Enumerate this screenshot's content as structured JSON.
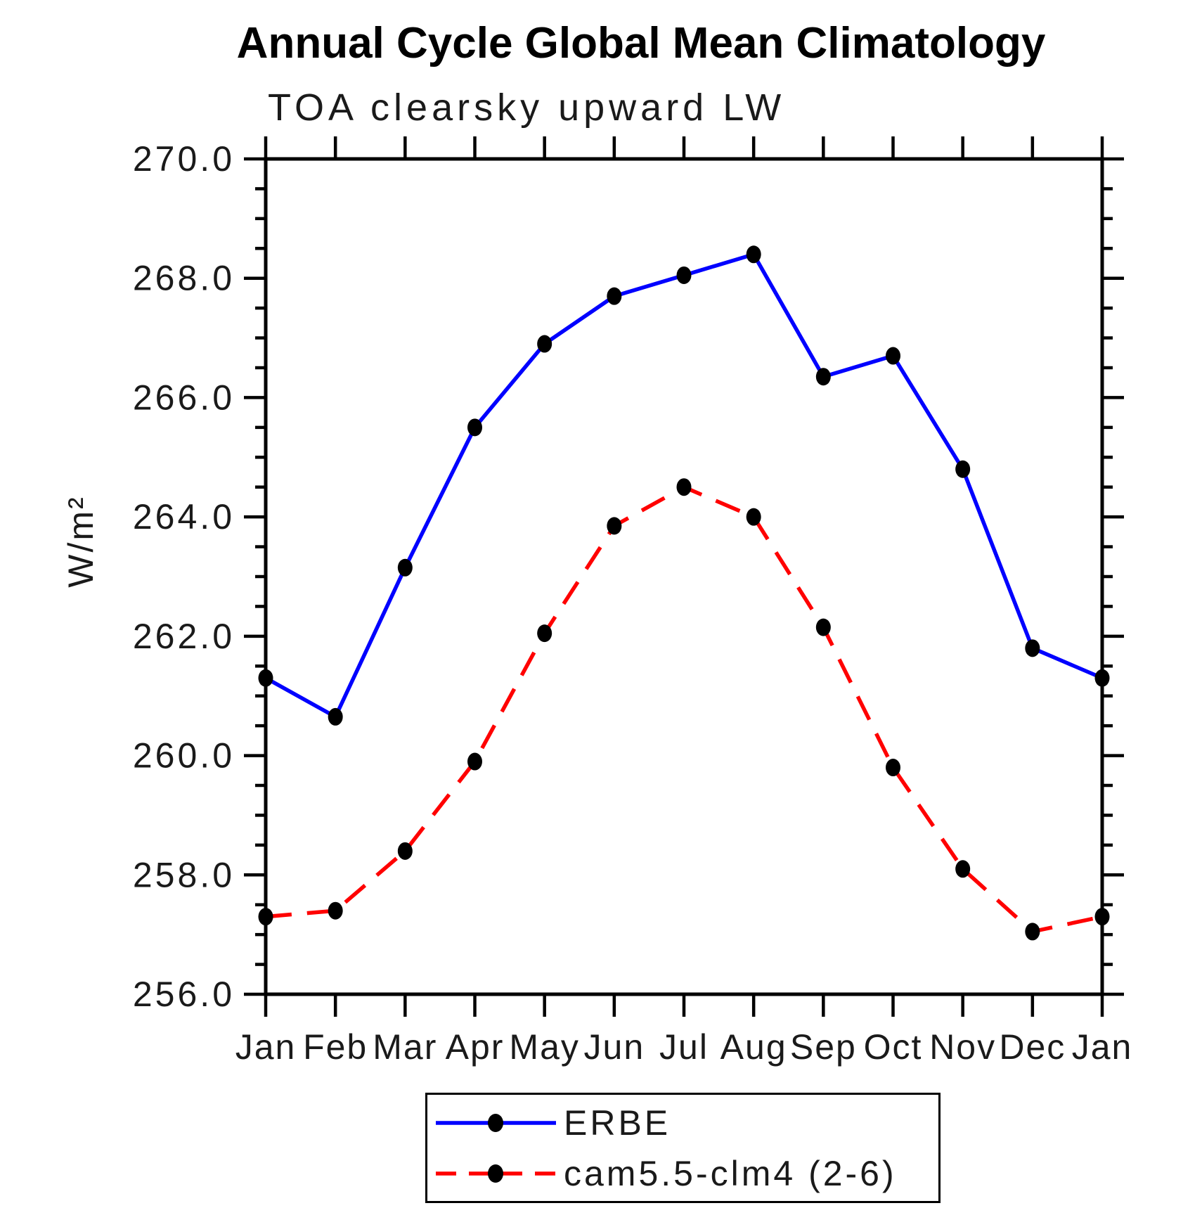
{
  "page": {
    "background_color": "#ffffff",
    "axis_color": "#000000"
  },
  "chart_data": {
    "type": "line",
    "title": "Annual Cycle Global Mean Climatology",
    "subtitle": "TOA clearsky upward LW",
    "ylabel": "W/m²",
    "xlabel": "",
    "grid": false,
    "legend_position": "bottom-center",
    "categories": [
      "Jan",
      "Feb",
      "Mar",
      "Apr",
      "May",
      "Jun",
      "Jul",
      "Aug",
      "Sep",
      "Oct",
      "Nov",
      "Dec",
      "Jan"
    ],
    "ylim": [
      256.0,
      270.0
    ],
    "ytick_labels": [
      "256.0",
      "258.0",
      "260.0",
      "262.0",
      "264.0",
      "266.0",
      "268.0",
      "270.0"
    ],
    "ytick_major_step": 2.0,
    "ytick_minor_step": 0.5,
    "series": [
      {
        "name": "ERBE",
        "color": "#0000ff",
        "line_style": "solid",
        "marker": "filled-circle",
        "marker_color": "#000000",
        "values": [
          261.3,
          260.65,
          263.15,
          265.5,
          266.9,
          267.7,
          268.05,
          268.4,
          266.35,
          266.7,
          264.8,
          261.8,
          261.3
        ]
      },
      {
        "name": "cam5.5-clm4 (2-6)",
        "color": "#ff0000",
        "line_style": "dashed",
        "marker": "filled-circle",
        "marker_color": "#000000",
        "values": [
          257.3,
          257.4,
          258.4,
          259.9,
          262.05,
          263.85,
          264.5,
          264.0,
          262.15,
          259.8,
          258.1,
          257.05,
          257.3
        ]
      }
    ]
  }
}
